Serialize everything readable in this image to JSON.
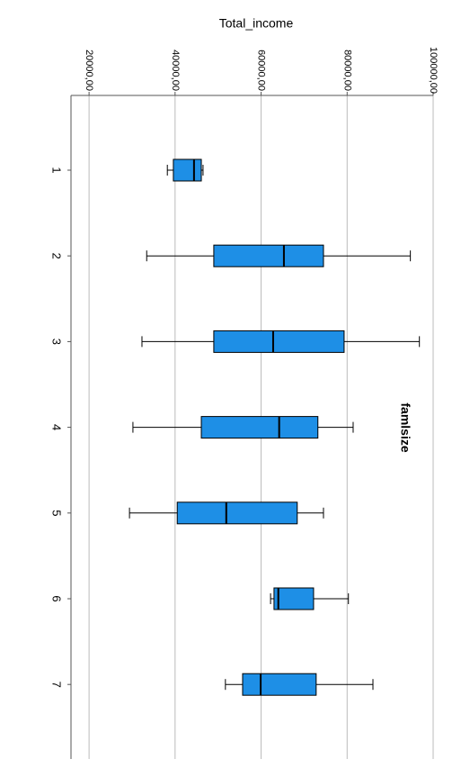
{
  "chart_data": {
    "type": "boxplot",
    "title": "Total_income",
    "y_axis_label": "famlsize",
    "categories": [
      "1",
      "2",
      "3",
      "4",
      "5",
      "6",
      "7"
    ],
    "boxes": [
      {
        "min": 38200,
        "q1": 39600,
        "median": 44400,
        "q3": 46100,
        "max": 46500
      },
      {
        "min": 33400,
        "q1": 49000,
        "median": 65300,
        "q3": 74500,
        "max": 94700
      },
      {
        "min": 32300,
        "q1": 49000,
        "median": 62800,
        "q3": 79300,
        "max": 96800
      },
      {
        "min": 30200,
        "q1": 46100,
        "median": 64200,
        "q3": 73200,
        "max": 81400
      },
      {
        "min": 29400,
        "q1": 40500,
        "median": 51900,
        "q3": 68400,
        "max": 74500
      },
      {
        "min": 62200,
        "q1": 63000,
        "median": 64000,
        "q3": 72200,
        "max": 80300
      },
      {
        "min": 51700,
        "q1": 55700,
        "median": 59900,
        "q3": 72800,
        "max": 86000
      }
    ],
    "color": "#1e8fe6",
    "xlim": [
      15800,
      100000
    ],
    "xticks": [
      {
        "value": 20000,
        "label": "20000,00"
      },
      {
        "value": 40000,
        "label": "40000,00"
      },
      {
        "value": 60000,
        "label": "60000,00"
      },
      {
        "value": 80000,
        "label": "80000,00"
      },
      {
        "value": 100000,
        "label": "100000,00"
      }
    ],
    "grid": true
  }
}
